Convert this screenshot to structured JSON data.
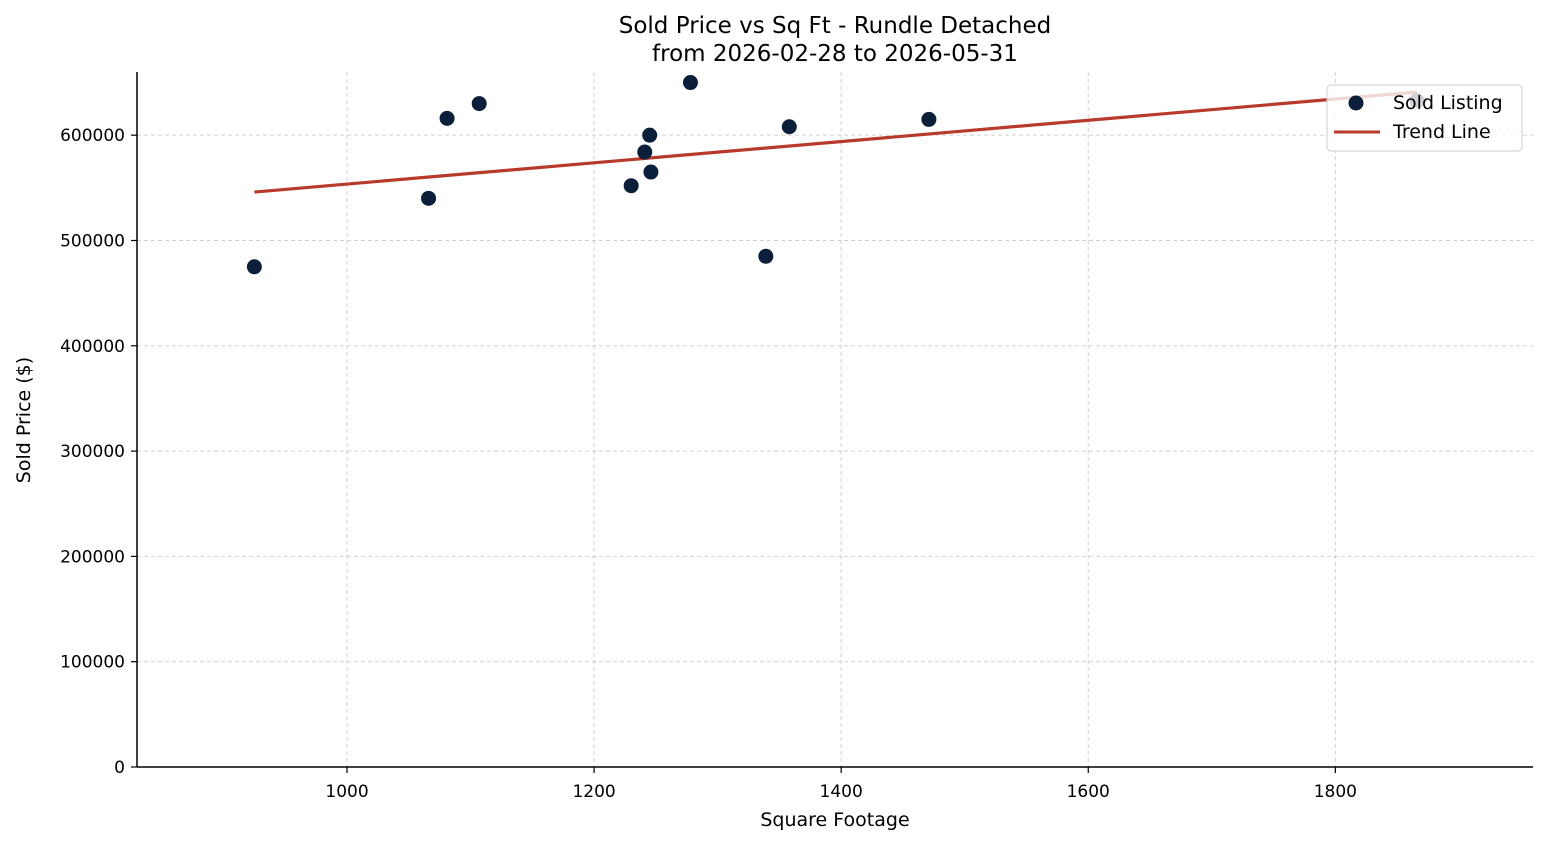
{
  "chart_data": {
    "type": "scatter",
    "title_line1": "Sold Price vs Sq Ft - Rundle Detached",
    "title_line2": "from 2026-02-28 to 2026-05-31",
    "xlabel": "Square Footage",
    "ylabel": "Sold Price ($)",
    "xlim": [
      830,
      1960
    ],
    "ylim": [
      0,
      660000
    ],
    "xticks": [
      1000,
      1200,
      1400,
      1600,
      1800
    ],
    "yticks": [
      0,
      100000,
      200000,
      300000,
      400000,
      500000,
      600000
    ],
    "grid": true,
    "legend_position": "top-right",
    "series": [
      {
        "name": "Sold Listing",
        "kind": "scatter",
        "color": "#0b1f3a",
        "points": [
          {
            "x": 925,
            "y": 475000
          },
          {
            "x": 1066,
            "y": 540000
          },
          {
            "x": 1081,
            "y": 616000
          },
          {
            "x": 1107,
            "y": 630000
          },
          {
            "x": 1230,
            "y": 552000
          },
          {
            "x": 1241,
            "y": 584000
          },
          {
            "x": 1245,
            "y": 600000
          },
          {
            "x": 1246,
            "y": 565000
          },
          {
            "x": 1278,
            "y": 650000
          },
          {
            "x": 1339,
            "y": 485000
          },
          {
            "x": 1358,
            "y": 608000
          },
          {
            "x": 1471,
            "y": 615000
          },
          {
            "x": 1866,
            "y": 633000
          }
        ]
      },
      {
        "name": "Trend Line",
        "kind": "line",
        "color": "#b83a2b",
        "points": [
          {
            "x": 925,
            "y": 546000
          },
          {
            "x": 1866,
            "y": 641000
          }
        ]
      }
    ]
  }
}
